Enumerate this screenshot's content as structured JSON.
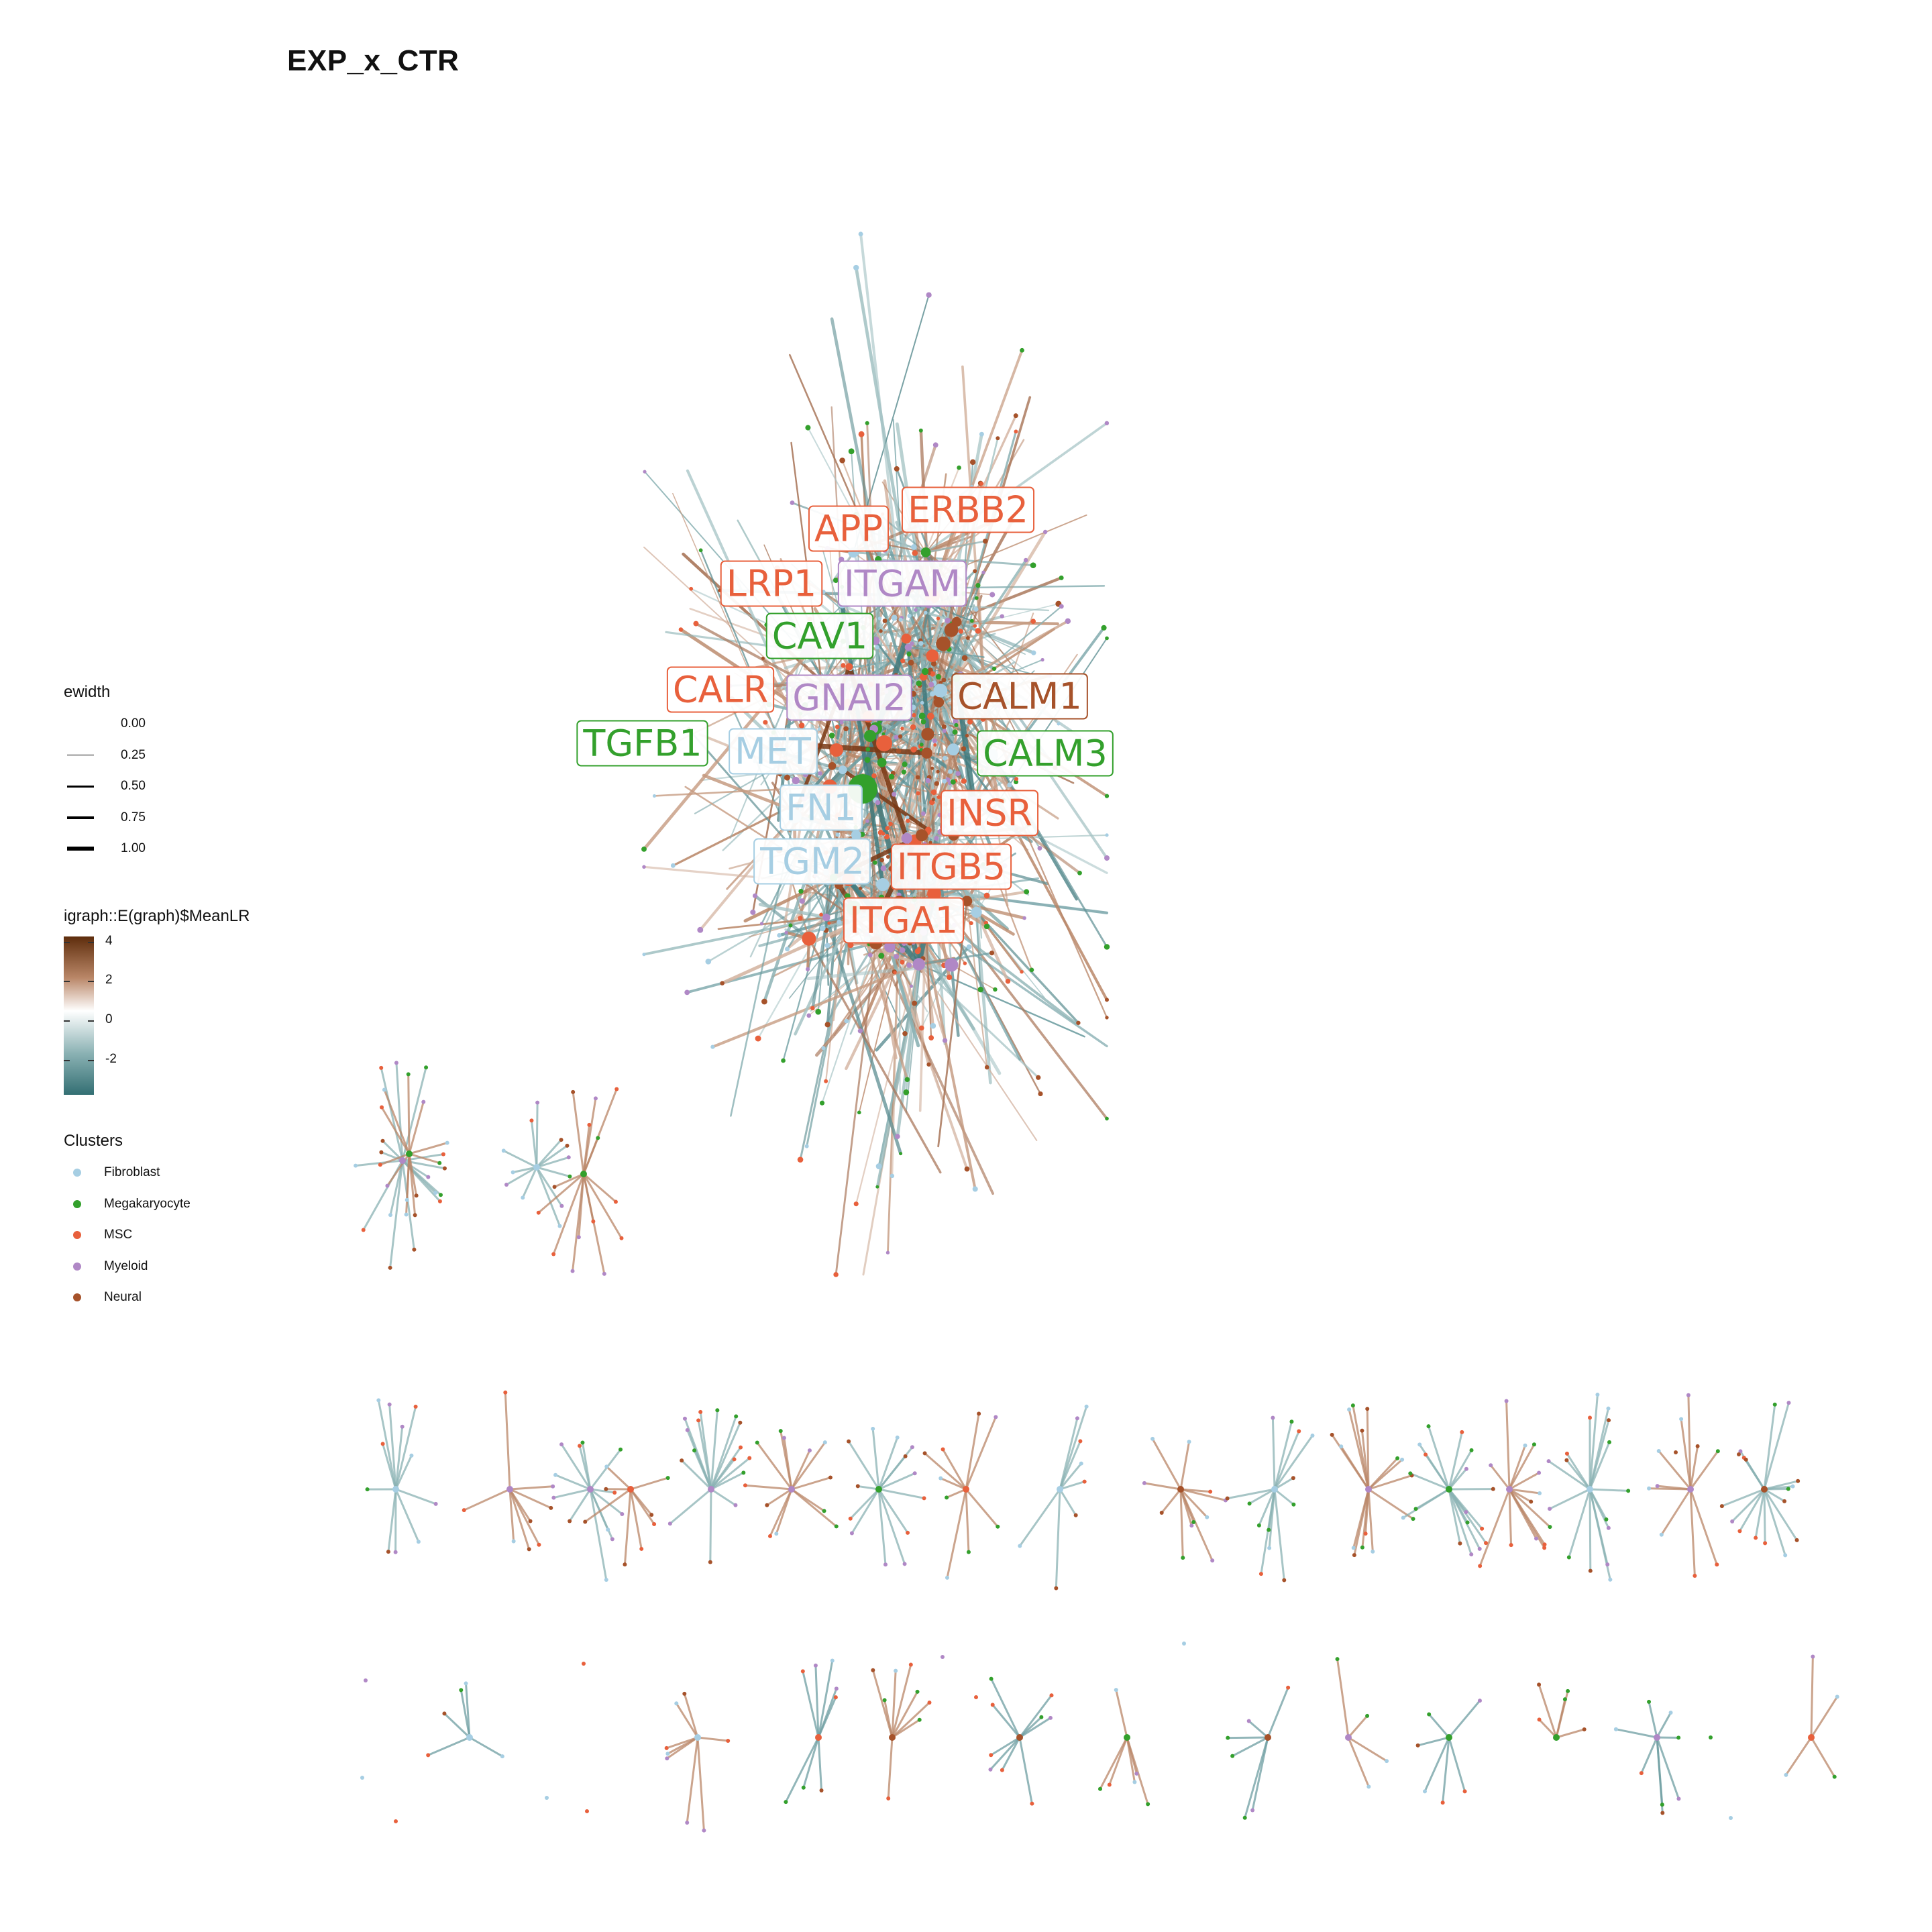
{
  "title": "EXP_x_CTR",
  "legend_ewidth": {
    "title": "ewidth",
    "items": [
      {
        "label": "0.00",
        "value": 0.0
      },
      {
        "label": "0.25",
        "value": 0.25
      },
      {
        "label": "0.50",
        "value": 0.5
      },
      {
        "label": "0.75",
        "value": 0.75
      },
      {
        "label": "1.00",
        "value": 1.0
      }
    ]
  },
  "legend_meanlr": {
    "title": "igraph::E(graph)$MeanLR",
    "ticks": [
      "4",
      "2",
      "0",
      "-2"
    ],
    "low_color": "#336f73",
    "mid_color": "#ffffff",
    "high_color": "#5e2d0c"
  },
  "legend_clusters": {
    "title": "Clusters",
    "items": [
      {
        "label": "Fibroblast",
        "color": "#a6cee3"
      },
      {
        "label": "Megakaryocyte",
        "color": "#33a02c"
      },
      {
        "label": "MSC",
        "color": "#e8603c"
      },
      {
        "label": "Myeloid",
        "color": "#b088c6"
      },
      {
        "label": "Neural",
        "color": "#a6522a"
      }
    ]
  },
  "node_labels": [
    {
      "text": "APP",
      "cluster": "MSC"
    },
    {
      "text": "ERBB2",
      "cluster": "MSC"
    },
    {
      "text": "LRP1",
      "cluster": "MSC"
    },
    {
      "text": "ITGAM",
      "cluster": "Myeloid"
    },
    {
      "text": "CAV1",
      "cluster": "Megakaryocyte"
    },
    {
      "text": "CALR",
      "cluster": "MSC"
    },
    {
      "text": "GNAI2",
      "cluster": "Myeloid"
    },
    {
      "text": "CALM1",
      "cluster": "Neural"
    },
    {
      "text": "TGFB1",
      "cluster": "Megakaryocyte"
    },
    {
      "text": "MET",
      "cluster": "Fibroblast"
    },
    {
      "text": "CALM3",
      "cluster": "Megakaryocyte"
    },
    {
      "text": "FN1",
      "cluster": "Fibroblast"
    },
    {
      "text": "INSR",
      "cluster": "MSC"
    },
    {
      "text": "TGM2",
      "cluster": "Fibroblast"
    },
    {
      "text": "ITGB5",
      "cluster": "MSC"
    },
    {
      "text": "ITGA1",
      "cluster": "MSC"
    }
  ]
}
